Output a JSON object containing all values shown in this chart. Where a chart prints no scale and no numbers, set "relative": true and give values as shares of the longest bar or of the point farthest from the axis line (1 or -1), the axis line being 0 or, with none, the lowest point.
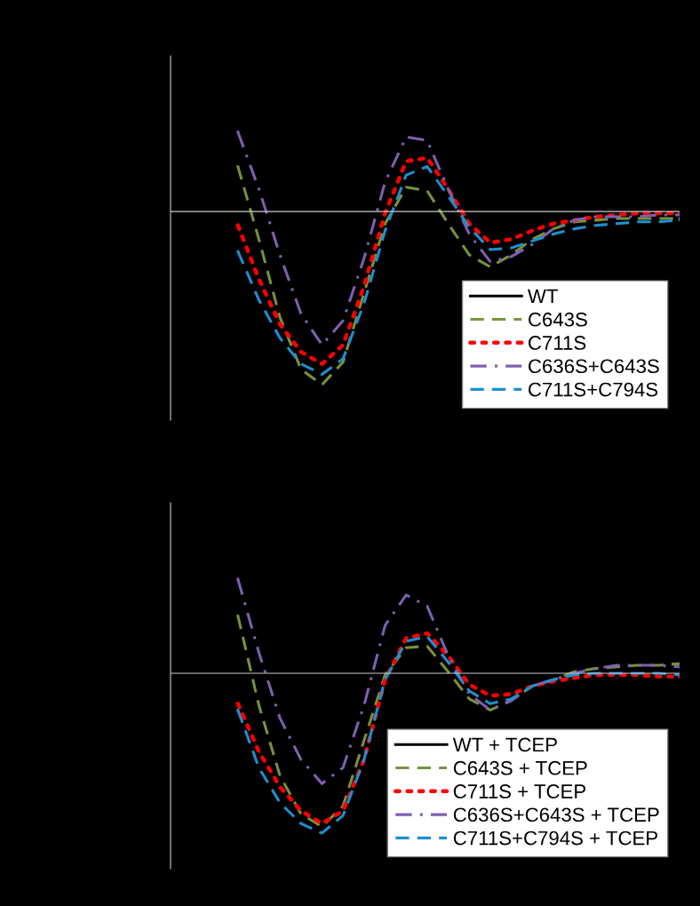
{
  "chart_data": [
    {
      "type": "line",
      "relative": true,
      "legend": "bottom right",
      "categories": [
        null,
        null,
        null,
        null,
        null,
        null,
        null,
        null,
        null,
        null,
        null,
        null,
        null,
        null,
        null,
        null,
        null,
        null,
        null,
        null,
        null,
        null
      ],
      "series": [
        {
          "name": "WT",
          "color": "#000000",
          "line_style": "solid",
          "values": [
            null,
            null,
            null,
            null,
            null,
            null,
            null,
            null,
            null,
            null,
            null,
            null,
            null,
            null,
            null,
            null,
            null,
            null,
            null,
            null,
            null,
            null
          ]
        },
        {
          "name": "C643S",
          "color": "#77933c",
          "line_style": "dashed",
          "values": [
            0.26,
            -0.16,
            -0.61,
            -0.91,
            -1.0,
            -0.87,
            -0.47,
            -0.07,
            0.14,
            0.12,
            -0.07,
            -0.25,
            -0.32,
            -0.25,
            -0.16,
            -0.1,
            -0.06,
            -0.05,
            -0.04,
            -0.04,
            -0.04,
            -0.04
          ]
        },
        {
          "name": "C711S",
          "color": "#ff0000",
          "line_style": "dotted",
          "values": [
            -0.08,
            -0.39,
            -0.65,
            -0.81,
            -0.88,
            -0.77,
            -0.43,
            -0.01,
            0.29,
            0.31,
            0.13,
            -0.07,
            -0.18,
            -0.16,
            -0.11,
            -0.07,
            -0.05,
            -0.03,
            -0.02,
            -0.01,
            -0.01,
            -0.01
          ]
        },
        {
          "name": "C636S+C643S",
          "color": "#7f5fb0",
          "line_style": "dashdot",
          "values": [
            0.46,
            0.13,
            -0.25,
            -0.59,
            -0.77,
            -0.63,
            -0.27,
            0.17,
            0.43,
            0.41,
            0.13,
            -0.13,
            -0.29,
            -0.26,
            -0.19,
            -0.1,
            -0.05,
            -0.03,
            -0.03,
            -0.03,
            -0.02,
            -0.02
          ]
        },
        {
          "name": "C711S+C794S",
          "color": "#1f8fd0",
          "line_style": "dashed",
          "values": [
            -0.23,
            -0.51,
            -0.73,
            -0.88,
            -0.94,
            -0.85,
            -0.53,
            -0.11,
            0.21,
            0.26,
            0.09,
            -0.09,
            -0.22,
            -0.21,
            -0.17,
            -0.13,
            -0.1,
            -0.08,
            -0.07,
            -0.06,
            -0.06,
            -0.05
          ]
        }
      ]
    },
    {
      "type": "line",
      "relative": true,
      "legend": "bottom right",
      "categories": [
        null,
        null,
        null,
        null,
        null,
        null,
        null,
        null,
        null,
        null,
        null,
        null,
        null,
        null,
        null,
        null,
        null,
        null,
        null,
        null,
        null,
        null
      ],
      "series": [
        {
          "name": "WT + TCEP",
          "color": "#000000",
          "line_style": "solid",
          "values": [
            null,
            null,
            null,
            null,
            null,
            null,
            null,
            null,
            null,
            null,
            null,
            null,
            null,
            null,
            null,
            null,
            null,
            null,
            null,
            null,
            null,
            null
          ]
        },
        {
          "name": "C643S + TCEP",
          "color": "#77933c",
          "line_style": "dashed",
          "values": [
            0.36,
            -0.2,
            -0.64,
            -0.88,
            -0.96,
            -0.83,
            -0.42,
            -0.01,
            0.16,
            0.17,
            0.01,
            -0.16,
            -0.23,
            -0.17,
            -0.08,
            -0.04,
            0.01,
            0.03,
            0.04,
            0.05,
            0.05,
            0.06
          ]
        },
        {
          "name": "C711S + TCEP",
          "color": "#ff0000",
          "line_style": "dotted",
          "values": [
            -0.19,
            -0.49,
            -0.71,
            -0.86,
            -0.94,
            -0.86,
            -0.54,
            -0.04,
            0.22,
            0.25,
            0.11,
            -0.07,
            -0.14,
            -0.13,
            -0.08,
            -0.05,
            -0.03,
            -0.01,
            -0.01,
            -0.01,
            -0.02,
            -0.02
          ]
        },
        {
          "name": "C636S+C643S + TCEP",
          "color": "#7f5fb0",
          "line_style": "dashdot",
          "values": [
            0.59,
            0.13,
            -0.28,
            -0.54,
            -0.69,
            -0.59,
            -0.2,
            0.3,
            0.49,
            0.42,
            0.11,
            -0.13,
            -0.23,
            -0.17,
            -0.08,
            -0.04,
            0.0,
            0.03,
            0.05,
            0.05,
            0.05,
            0.04
          ]
        },
        {
          "name": "C711S+C794S + TCEP",
          "color": "#1f8fd0",
          "line_style": "dashed",
          "values": [
            -0.23,
            -0.59,
            -0.81,
            -0.94,
            -1.0,
            -0.89,
            -0.54,
            -0.04,
            0.2,
            0.23,
            0.07,
            -0.11,
            -0.19,
            -0.16,
            -0.08,
            -0.04,
            -0.01,
            0.0,
            0.0,
            0.0,
            0.0,
            -0.01
          ]
        }
      ]
    }
  ]
}
